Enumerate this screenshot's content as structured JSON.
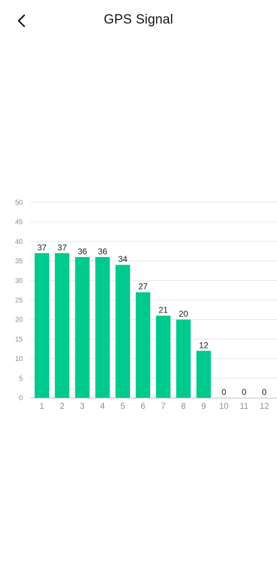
{
  "header": {
    "title": "GPS Signal",
    "back_icon": "chevron-left-icon"
  },
  "colors": {
    "bar": "#00c98e",
    "grid": "#e4e4e4",
    "axis": "#bdbdbd",
    "tick_label": "#8c8c8c",
    "value_label": "#1a1a1a"
  },
  "chart_data": {
    "type": "bar",
    "categories": [
      "1",
      "2",
      "3",
      "4",
      "5",
      "6",
      "7",
      "8",
      "9",
      "10",
      "11",
      "12"
    ],
    "values": [
      37,
      37,
      36,
      36,
      34,
      27,
      21,
      20,
      12,
      0,
      0,
      0
    ],
    "y_ticks": [
      0,
      5,
      10,
      15,
      20,
      25,
      30,
      35,
      40,
      45,
      50
    ],
    "ylim": [
      0,
      50
    ],
    "grid": true,
    "legend": "none"
  }
}
